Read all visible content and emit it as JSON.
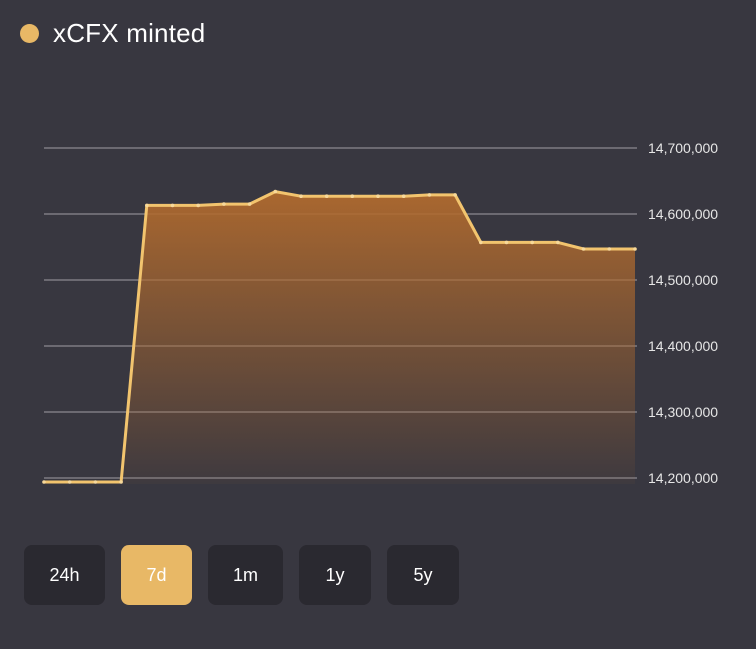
{
  "header": {
    "title": "xCFX minted",
    "dot_color": "#E8B866"
  },
  "range_buttons": [
    {
      "label": "24h",
      "active": false
    },
    {
      "label": "7d",
      "active": true
    },
    {
      "label": "1m",
      "active": false
    },
    {
      "label": "1y",
      "active": false
    },
    {
      "label": "5y",
      "active": false
    }
  ],
  "chart_data": {
    "type": "area",
    "title": "xCFX minted",
    "xlabel": "",
    "ylabel": "",
    "ylim": [
      14190000,
      14700000
    ],
    "y_ticks": [
      14200000,
      14300000,
      14400000,
      14500000,
      14600000,
      14700000
    ],
    "y_tick_labels": [
      "14,200,000",
      "14,300,000",
      "14,400,000",
      "14,500,000",
      "14,600,000",
      "14,700,000"
    ],
    "y_axis_position": "right",
    "grid": true,
    "line_color": "#F2C46E",
    "fill_color_top": "#B06A2E",
    "series": [
      {
        "values": [
          14194000,
          14194000,
          14194000,
          14194000,
          14613000,
          14613000,
          14613000,
          14615000,
          14615000,
          14634000,
          14627000,
          14627000,
          14627000,
          14627000,
          14627000,
          14629000,
          14629000,
          14557000,
          14557000,
          14557000,
          14557000,
          14547000,
          14547000,
          14547000
        ]
      }
    ]
  }
}
